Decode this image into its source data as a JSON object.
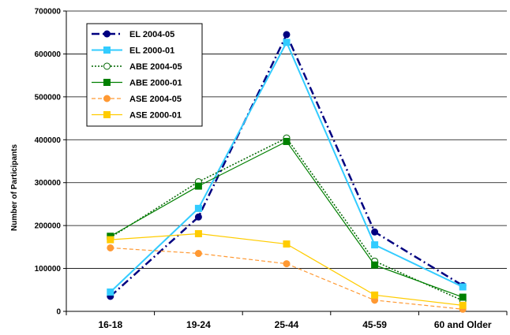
{
  "chart_data": {
    "type": "line",
    "title": "",
    "xlabel": "",
    "ylabel": "Number of Participants",
    "ylim": [
      0,
      700000
    ],
    "yticks": [
      0,
      100000,
      200000,
      300000,
      400000,
      500000,
      600000,
      700000
    ],
    "ytick_labels": [
      "0",
      "100000",
      "200000",
      "300000",
      "400000",
      "500000",
      "600000",
      "700000"
    ],
    "grid": true,
    "legend_position": "top-left",
    "categories": [
      "16-18",
      "19-24",
      "25-44",
      "45-59",
      "60 and Older"
    ],
    "series": [
      {
        "name": "EL  2004-05",
        "values": [
          35000,
          220000,
          645000,
          185000,
          60000
        ],
        "color": "#000080",
        "dash": "dashdot",
        "marker": "circle",
        "marker_fill": "#000080",
        "width": 2.5
      },
      {
        "name": "EL  2000-01",
        "values": [
          45000,
          240000,
          627000,
          155000,
          57000
        ],
        "color": "#33CCFF",
        "dash": "solid",
        "marker": "square",
        "marker_fill": "#33CCFF",
        "width": 2
      },
      {
        "name": "ABE 2004-05",
        "values": [
          172000,
          302000,
          404000,
          117000,
          25000
        ],
        "color": "#006600",
        "dash": "dotted",
        "marker": "circle",
        "marker_fill": "#ffffff",
        "width": 1.5
      },
      {
        "name": "ABE 2000-01",
        "values": [
          175000,
          292000,
          396000,
          108000,
          33000
        ],
        "color": "#008000",
        "dash": "solid",
        "marker": "square",
        "marker_fill": "#008000",
        "width": 1.2
      },
      {
        "name": "ASE 2004-05",
        "values": [
          148000,
          135000,
          111000,
          26000,
          5000
        ],
        "color": "#FF9933",
        "dash": "dashed",
        "marker": "circle",
        "marker_fill": "#FF9933",
        "width": 1.2
      },
      {
        "name": "ASE 2000-01",
        "values": [
          167000,
          181000,
          157000,
          38000,
          14000
        ],
        "color": "#FFCC00",
        "dash": "solid",
        "marker": "square",
        "marker_fill": "#FFCC00",
        "width": 1.2
      }
    ]
  }
}
